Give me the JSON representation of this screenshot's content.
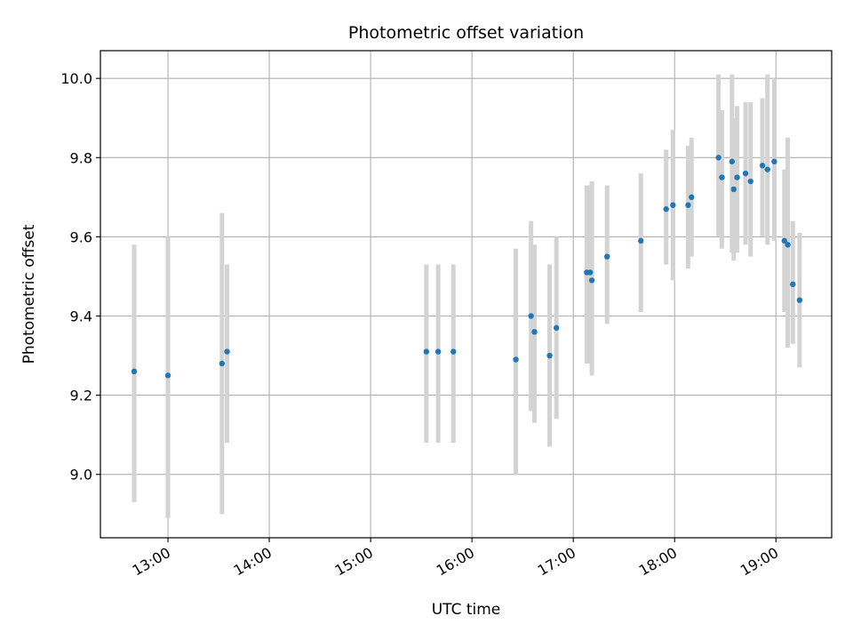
{
  "chart_data": {
    "type": "scatter",
    "title": "Photometric offset variation",
    "xlabel": "UTC time",
    "ylabel": "Photometric offset",
    "x_format": "HH:MM",
    "xlim": [
      "12:20",
      "19:33"
    ],
    "ylim": [
      8.84,
      10.07
    ],
    "grid": true,
    "colors": {
      "point": "#1f77b4",
      "errorbar": "#d3d3d3",
      "grid": "#b0b0b0"
    },
    "x_ticks": [
      "13:00",
      "14:00",
      "15:00",
      "16:00",
      "17:00",
      "18:00",
      "19:00"
    ],
    "y_ticks": [
      9.0,
      9.2,
      9.4,
      9.6,
      9.8,
      10.0
    ],
    "series": [
      {
        "points": [
          {
            "x": "12:40",
            "y": 9.26,
            "lo": 8.93,
            "hi": 9.58
          },
          {
            "x": "13:00",
            "y": 9.25,
            "lo": 8.89,
            "hi": 9.6
          },
          {
            "x": "13:32",
            "y": 9.28,
            "lo": 8.9,
            "hi": 9.66
          },
          {
            "x": "13:35",
            "y": 9.31,
            "lo": 9.08,
            "hi": 9.53
          },
          {
            "x": "15:33",
            "y": 9.31,
            "lo": 9.08,
            "hi": 9.53
          },
          {
            "x": "15:40",
            "y": 9.31,
            "lo": 9.08,
            "hi": 9.53
          },
          {
            "x": "15:49",
            "y": 9.31,
            "lo": 9.08,
            "hi": 9.53
          },
          {
            "x": "16:26",
            "y": 9.29,
            "lo": 9.0,
            "hi": 9.57
          },
          {
            "x": "16:35",
            "y": 9.4,
            "lo": 9.16,
            "hi": 9.64
          },
          {
            "x": "16:37",
            "y": 9.36,
            "lo": 9.13,
            "hi": 9.58
          },
          {
            "x": "16:46",
            "y": 9.3,
            "lo": 9.07,
            "hi": 9.53
          },
          {
            "x": "16:50",
            "y": 9.37,
            "lo": 9.14,
            "hi": 9.6
          },
          {
            "x": "17:08",
            "y": 9.51,
            "lo": 9.28,
            "hi": 9.73
          },
          {
            "x": "17:10",
            "y": 9.51,
            "lo": 9.28,
            "hi": 9.73
          },
          {
            "x": "17:11",
            "y": 9.49,
            "lo": 9.25,
            "hi": 9.74
          },
          {
            "x": "17:20",
            "y": 9.55,
            "lo": 9.38,
            "hi": 9.73
          },
          {
            "x": "17:40",
            "y": 9.59,
            "lo": 9.41,
            "hi": 9.76
          },
          {
            "x": "17:55",
            "y": 9.67,
            "lo": 9.53,
            "hi": 9.82
          },
          {
            "x": "17:59",
            "y": 9.68,
            "lo": 9.49,
            "hi": 9.87
          },
          {
            "x": "18:08",
            "y": 9.68,
            "lo": 9.52,
            "hi": 9.83
          },
          {
            "x": "18:10",
            "y": 9.7,
            "lo": 9.55,
            "hi": 9.85
          },
          {
            "x": "18:26",
            "y": 9.8,
            "lo": 9.6,
            "hi": 10.01
          },
          {
            "x": "18:28",
            "y": 9.75,
            "lo": 9.57,
            "hi": 9.92
          },
          {
            "x": "18:34",
            "y": 9.79,
            "lo": 9.56,
            "hi": 10.01
          },
          {
            "x": "18:35",
            "y": 9.72,
            "lo": 9.54,
            "hi": 9.9
          },
          {
            "x": "18:37",
            "y": 9.75,
            "lo": 9.56,
            "hi": 9.93
          },
          {
            "x": "18:42",
            "y": 9.76,
            "lo": 9.58,
            "hi": 9.94
          },
          {
            "x": "18:45",
            "y": 9.74,
            "lo": 9.55,
            "hi": 9.94
          },
          {
            "x": "18:52",
            "y": 9.78,
            "lo": 9.6,
            "hi": 9.95
          },
          {
            "x": "18:55",
            "y": 9.77,
            "lo": 9.58,
            "hi": 10.01
          },
          {
            "x": "18:59",
            "y": 9.79,
            "lo": 9.59,
            "hi": 10.0
          },
          {
            "x": "19:05",
            "y": 9.59,
            "lo": 9.41,
            "hi": 9.77
          },
          {
            "x": "19:07",
            "y": 9.58,
            "lo": 9.32,
            "hi": 9.85
          },
          {
            "x": "19:10",
            "y": 9.48,
            "lo": 9.33,
            "hi": 9.64
          },
          {
            "x": "19:14",
            "y": 9.44,
            "lo": 9.27,
            "hi": 9.61
          }
        ]
      }
    ]
  }
}
